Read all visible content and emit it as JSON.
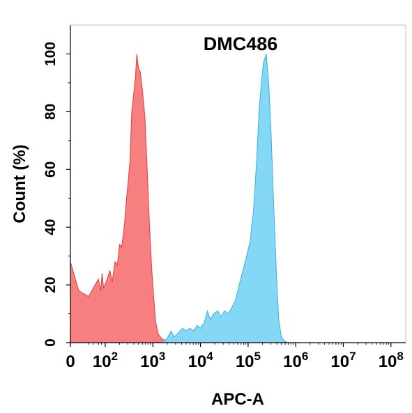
{
  "chart_data": {
    "type": "area",
    "title": "DMC486",
    "xlabel": "APC-A",
    "ylabel": "Count  (%)",
    "x_scale": "log",
    "xlim": [
      0,
      100000000
    ],
    "ylim": [
      0,
      110
    ],
    "x_ticks": [
      {
        "value": 0,
        "base": "0",
        "exp": ""
      },
      {
        "value": 100,
        "base": "10",
        "exp": "2"
      },
      {
        "value": 1000,
        "base": "10",
        "exp": "3"
      },
      {
        "value": 10000,
        "base": "10",
        "exp": "4"
      },
      {
        "value": 100000,
        "base": "10",
        "exp": "5"
      },
      {
        "value": 1000000,
        "base": "10",
        "exp": "6"
      },
      {
        "value": 10000000,
        "base": "10",
        "exp": "7"
      },
      {
        "value": 100000000,
        "base": "10",
        "exp": "8"
      }
    ],
    "y_ticks": [
      0,
      20,
      40,
      60,
      80,
      100
    ],
    "grid": false,
    "legend": "none",
    "series": [
      {
        "color": "#f87878",
        "stroke": "#e03c3c",
        "x": [
          0,
          2,
          10,
          25,
          40,
          55,
          65,
          80,
          95,
          110,
          125,
          140,
          160,
          180,
          200,
          220,
          250,
          280,
          300,
          330,
          360,
          400,
          430,
          460,
          500,
          540,
          600,
          680,
          750,
          850,
          950,
          1050,
          1150,
          1300,
          1500,
          1800,
          2200
        ],
        "y": [
          28,
          18,
          16,
          20,
          22,
          18,
          24,
          19,
          20,
          22,
          25,
          21,
          28,
          27,
          34,
          33,
          40,
          50,
          55,
          63,
          80,
          87,
          92,
          100,
          95,
          94,
          88,
          78,
          62,
          40,
          25,
          15,
          7,
          3,
          1.5,
          0.7,
          0
        ]
      },
      {
        "color": "#7dd6f6",
        "stroke": "#3aaee0",
        "x": [
          1500,
          2000,
          2400,
          2800,
          3500,
          4200,
          5000,
          6000,
          7200,
          8500,
          10000,
          12000,
          14000,
          16000,
          19000,
          23000,
          27000,
          32000,
          38000,
          45000,
          55000,
          65000,
          75000,
          90000,
          110000,
          130000,
          150000,
          170000,
          190000,
          210000,
          240000,
          270000,
          300000,
          340000,
          390000,
          440000,
          500000,
          580000,
          700000,
          900000,
          1200000,
          1600000
        ],
        "y": [
          0,
          1.5,
          4,
          2,
          3.5,
          5,
          4,
          5,
          4,
          6,
          5,
          7,
          11,
          8,
          10,
          11,
          9,
          11,
          10,
          12,
          15,
          20,
          24,
          29,
          35,
          46,
          62,
          80,
          90,
          97,
          100,
          90,
          75,
          50,
          25,
          8,
          2,
          0.5,
          0,
          0,
          0,
          0
        ]
      }
    ]
  }
}
